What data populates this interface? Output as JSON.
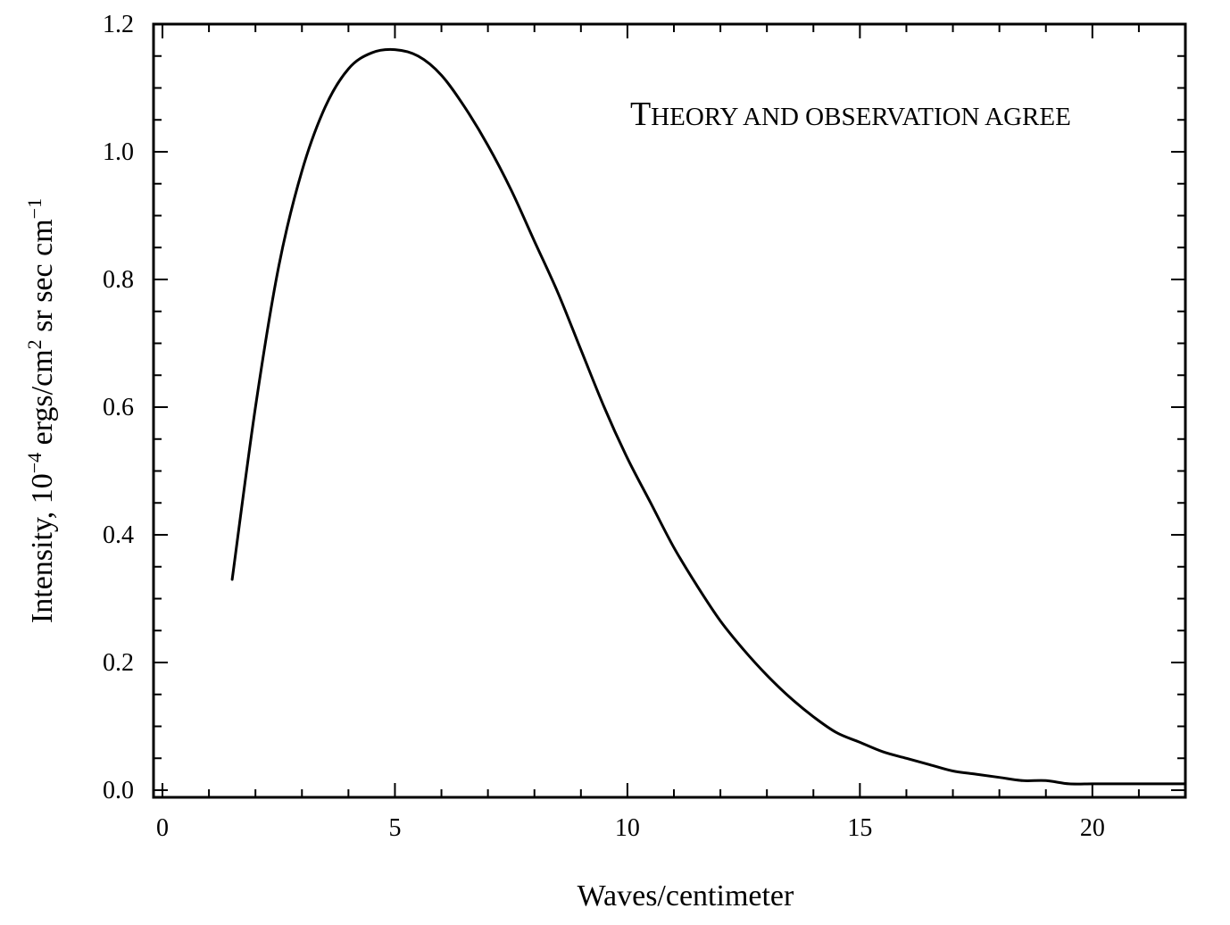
{
  "chart_data": {
    "type": "line",
    "title": "",
    "xlabel": "Waves/centimeter",
    "ylabel": "Intensity, 10",
    "ylabel_exp1": "−4",
    "ylabel_mid": " ergs/cm",
    "ylabel_exp2": "2",
    "ylabel_end": " sr sec cm",
    "ylabel_exp3": "−1",
    "xlim": [
      0,
      22
    ],
    "ylim": [
      0,
      1.2
    ],
    "x_ticks": [
      "0",
      "5",
      "10",
      "15",
      "20"
    ],
    "y_ticks": [
      "0.0",
      "0.2",
      "0.4",
      "0.6",
      "0.8",
      "1.0",
      "1.2"
    ],
    "grid": false,
    "annotation": {
      "text_first": "T",
      "text_rest": "HEORY AND OBSERVATION AGREE"
    },
    "series": [
      {
        "x": [
          1.5,
          2,
          2.5,
          3,
          3.5,
          4,
          4.5,
          5,
          5.5,
          6,
          6.5,
          7,
          7.5,
          8,
          8.5,
          9,
          9.5,
          10,
          10.5,
          11,
          11.5,
          12,
          12.5,
          13,
          13.5,
          14,
          14.5,
          15,
          15.5,
          16,
          16.5,
          17,
          17.5,
          18,
          18.5,
          19,
          19.5,
          20,
          20.5,
          21,
          21.5,
          22
        ],
        "values": [
          0.33,
          0.6,
          0.82,
          0.97,
          1.07,
          1.13,
          1.155,
          1.16,
          1.15,
          1.12,
          1.07,
          1.01,
          0.94,
          0.86,
          0.78,
          0.69,
          0.6,
          0.52,
          0.45,
          0.38,
          0.32,
          0.265,
          0.22,
          0.18,
          0.145,
          0.115,
          0.09,
          0.075,
          0.06,
          0.05,
          0.04,
          0.03,
          0.025,
          0.02,
          0.015,
          0.015,
          0.01,
          0.01,
          0.01,
          0.01,
          0.01,
          0.01
        ]
      }
    ]
  },
  "colors": {
    "line": "#000000",
    "background": "#ffffff"
  }
}
